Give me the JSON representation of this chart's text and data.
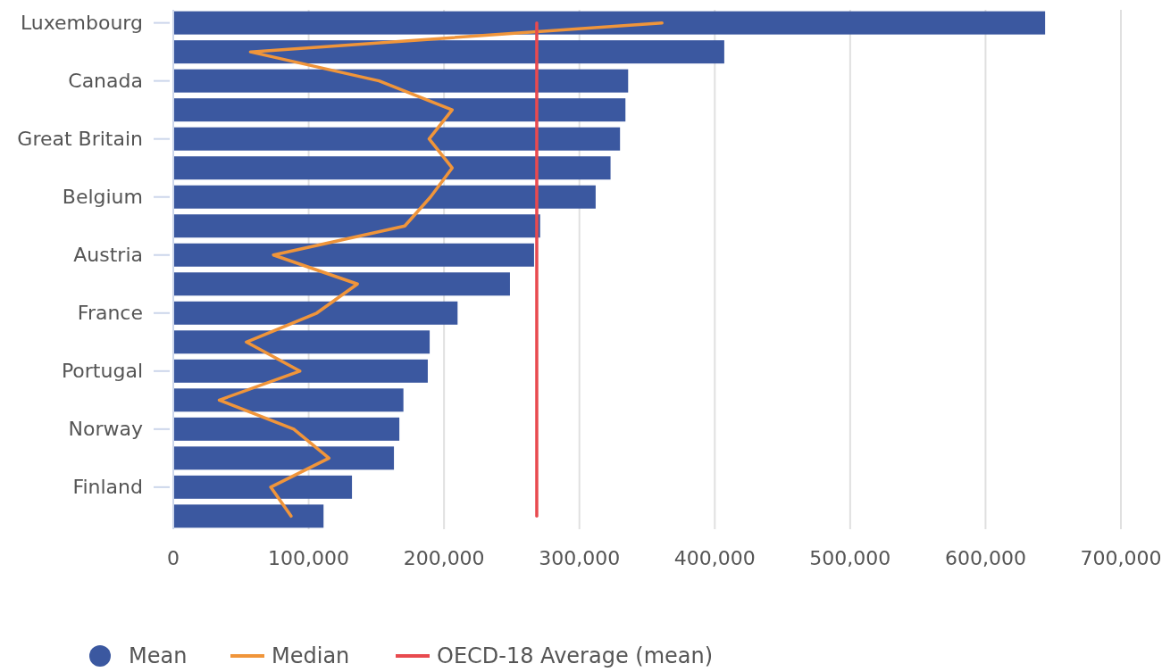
{
  "chart_data": {
    "type": "bar",
    "orientation": "horizontal",
    "categories": [
      "Luxembourg",
      null,
      "Canada",
      null,
      "Great Britain",
      null,
      "Belgium",
      null,
      "Austria",
      null,
      "France",
      null,
      "Portugal",
      null,
      "Norway",
      null,
      "Finland",
      null
    ],
    "series": [
      {
        "name": "Mean",
        "color": "#3b58a0",
        "values": [
          644000,
          407000,
          336000,
          334000,
          330000,
          323000,
          312000,
          271000,
          266500,
          248700,
          210000,
          189400,
          188000,
          170000,
          167000,
          163000,
          132000,
          111000
        ]
      },
      {
        "name": "Median",
        "type": "line",
        "color": "#f0953a",
        "values": [
          361000,
          57000,
          152000,
          206000,
          189000,
          206000,
          190000,
          171000,
          74000,
          136000,
          106000,
          54000,
          93500,
          34000,
          89000,
          115000,
          72000,
          87000
        ]
      }
    ],
    "ref_lines": [
      {
        "axis": "x",
        "value": 268500,
        "label": "OECD-18 Average (mean)",
        "color": "#e84a4f"
      }
    ],
    "xlim": [
      0,
      700000
    ],
    "xticks": [
      0,
      {
        "value": 100000,
        "label": "100,000"
      },
      {
        "value": 200000,
        "label": "200,000"
      },
      {
        "value": 300000,
        "label": "300,000"
      },
      {
        "value": 400000,
        "label": "400,000"
      },
      {
        "value": 500000,
        "label": "500,000"
      },
      {
        "value": 600000,
        "label": "600,000"
      },
      {
        "value": 700000,
        "label": "700,000"
      }
    ],
    "grid": "x",
    "legend": "bottom"
  }
}
